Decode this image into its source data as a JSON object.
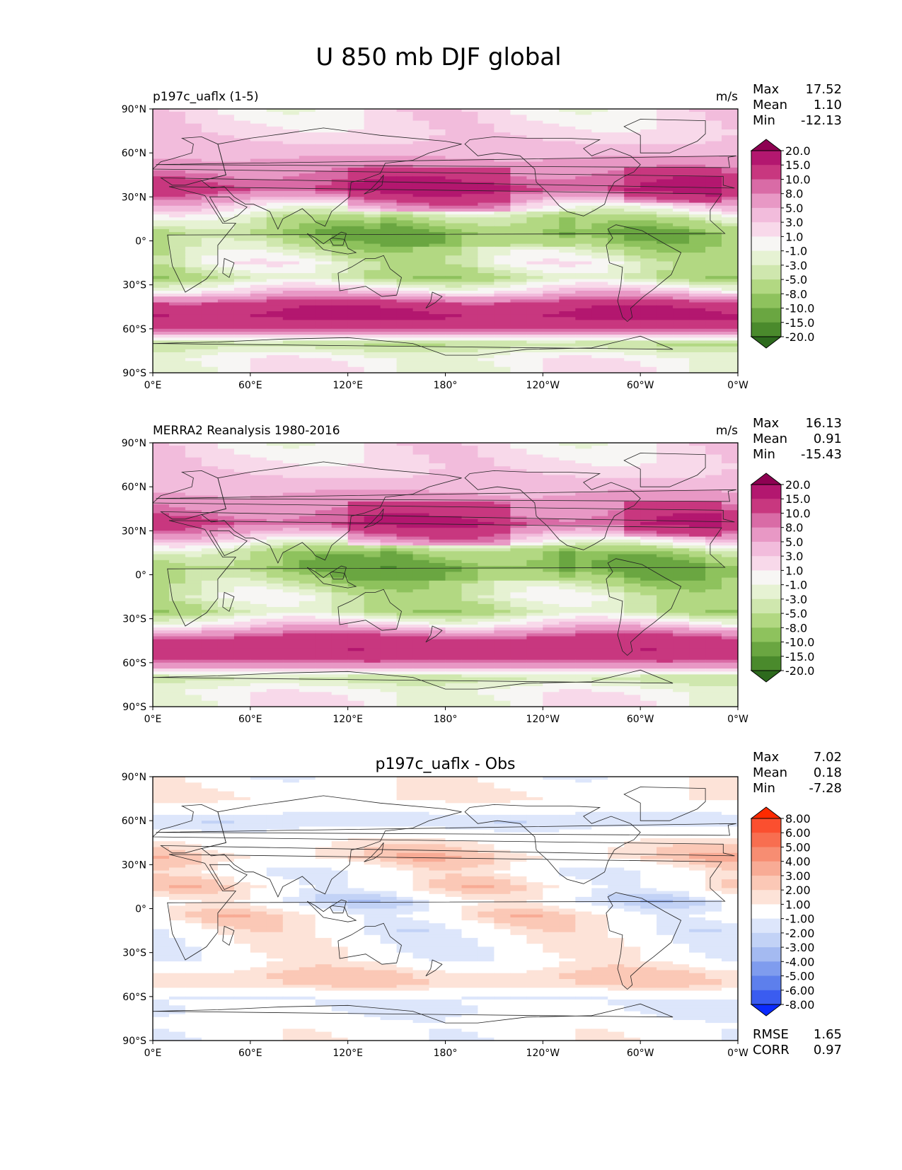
{
  "title": "U 850 mb DJF global",
  "x_ticks": [
    "0°E",
    "60°E",
    "120°E",
    "180°",
    "120°W",
    "60°W",
    "0°W"
  ],
  "y_ticks": [
    "90°N",
    "60°N",
    "30°N",
    "0°",
    "30°S",
    "60°S",
    "90°S"
  ],
  "panels": [
    {
      "name": "model",
      "left_title": "p197c_uaflx (1-5)",
      "center_title": "",
      "units": "m/s",
      "stats": [
        {
          "label": "Max",
          "value": "17.52"
        },
        {
          "label": "Mean",
          "value": "1.10"
        },
        {
          "label": "Min",
          "value": "-12.13"
        }
      ],
      "footer_stats": []
    },
    {
      "name": "obs",
      "left_title": "MERRA2 Reanalysis 1980-2016",
      "center_title": "",
      "units": "m/s",
      "stats": [
        {
          "label": "Max",
          "value": "16.13"
        },
        {
          "label": "Mean",
          "value": "0.91"
        },
        {
          "label": "Min",
          "value": "-15.43"
        }
      ],
      "footer_stats": []
    },
    {
      "name": "diff",
      "left_title": "",
      "center_title": "p197c_uaflx - Obs",
      "units": "",
      "stats": [
        {
          "label": "Max",
          "value": "7.02"
        },
        {
          "label": "Mean",
          "value": "0.18"
        },
        {
          "label": "Min",
          "value": "-7.28"
        }
      ],
      "footer_stats": [
        {
          "label": "RMSE",
          "value": "1.65"
        },
        {
          "label": "CORR",
          "value": "0.97"
        }
      ]
    }
  ],
  "colorbars": {
    "wind": {
      "labels": [
        "20.0",
        "15.0",
        "10.0",
        "8.0",
        "5.0",
        "3.0",
        "1.0",
        "-1.0",
        "-3.0",
        "-5.0",
        "-8.0",
        "-10.0",
        "-15.0",
        "-20.0"
      ],
      "colors": [
        "#8e0152",
        "#b3176f",
        "#c8377f",
        "#d96ba6",
        "#e898c5",
        "#f2bcdc",
        "#f8d9ea",
        "#f7f6f4",
        "#e6f2d3",
        "#cfe7ae",
        "#b2d882",
        "#8ec25d",
        "#6aa641",
        "#4a8a2c",
        "#2d6a1d"
      ]
    },
    "diff": {
      "labels": [
        "8.00",
        "6.00",
        "5.00",
        "4.00",
        "3.00",
        "2.00",
        "1.00",
        "-1.00",
        "-2.00",
        "-3.00",
        "-4.00",
        "-5.00",
        "-6.00",
        "-8.00"
      ],
      "colors": [
        "#ff2a00",
        "#fb4f2f",
        "#f86e50",
        "#f78d72",
        "#f8ab95",
        "#fbc8b6",
        "#fde3d8",
        "#ffffff",
        "#dde6fb",
        "#c2d2f6",
        "#a4baf1",
        "#7f9cee",
        "#5d7fec",
        "#3a5cf0",
        "#0a2aff"
      ]
    }
  },
  "chart_data": [
    {
      "type": "heatmap",
      "title": "p197c_uaflx (1-5)",
      "units": "m/s",
      "x_range": [
        0,
        360
      ],
      "y_range": [
        -90,
        90
      ],
      "x_ticks": [
        "0°E",
        "60°E",
        "120°E",
        "180°",
        "120°W",
        "60°W",
        "0°W"
      ],
      "y_ticks": [
        "90°N",
        "60°N",
        "30°N",
        "0°",
        "30°S",
        "60°S",
        "90°S"
      ],
      "colorbar_levels": [
        -20,
        -15,
        -10,
        -8,
        -5,
        -3,
        -1,
        1,
        3,
        5,
        8,
        10,
        15,
        20
      ],
      "stats": {
        "max": 17.52,
        "mean": 1.1,
        "min": -12.13
      },
      "zonal_profile": {
        "lat": [
          90,
          75,
          60,
          45,
          35,
          25,
          15,
          5,
          -5,
          -15,
          -25,
          -35,
          -45,
          -52,
          -60,
          -70,
          -80,
          -90
        ],
        "u": [
          1,
          2,
          4,
          9,
          12,
          3,
          -4,
          -8,
          -5,
          -2,
          -5,
          3,
          14,
          16,
          10,
          -5,
          0,
          0
        ]
      }
    },
    {
      "type": "heatmap",
      "title": "MERRA2 Reanalysis 1980-2016",
      "units": "m/s",
      "x_range": [
        0,
        360
      ],
      "y_range": [
        -90,
        90
      ],
      "x_ticks": [
        "0°E",
        "60°E",
        "120°E",
        "180°",
        "120°W",
        "60°W",
        "0°W"
      ],
      "y_ticks": [
        "90°N",
        "60°N",
        "30°N",
        "0°",
        "30°S",
        "60°S",
        "90°S"
      ],
      "colorbar_levels": [
        -20,
        -15,
        -10,
        -8,
        -5,
        -3,
        -1,
        1,
        3,
        5,
        8,
        10,
        15,
        20
      ],
      "stats": {
        "max": 16.13,
        "mean": 0.91,
        "min": -15.43
      },
      "zonal_profile": {
        "lat": [
          90,
          75,
          60,
          45,
          35,
          25,
          15,
          5,
          -5,
          -15,
          -25,
          -35,
          -45,
          -52,
          -60,
          -70,
          -80,
          -90
        ],
        "u": [
          1,
          2,
          4,
          8,
          11,
          3,
          -6,
          -9,
          -6,
          -3,
          -5,
          3,
          13,
          14,
          9,
          -4,
          0,
          0
        ]
      }
    },
    {
      "type": "heatmap",
      "title": "p197c_uaflx - Obs",
      "units": "",
      "x_range": [
        0,
        360
      ],
      "y_range": [
        -90,
        90
      ],
      "x_ticks": [
        "0°E",
        "60°E",
        "120°E",
        "180°",
        "120°W",
        "60°W",
        "0°W"
      ],
      "y_ticks": [
        "90°N",
        "60°N",
        "30°N",
        "0°",
        "30°S",
        "60°S",
        "90°S"
      ],
      "colorbar_levels": [
        -8,
        -6,
        -5,
        -4,
        -3,
        -2,
        -1,
        1,
        2,
        3,
        4,
        5,
        6,
        8
      ],
      "stats": {
        "max": 7.02,
        "mean": 0.18,
        "min": -7.28,
        "rmse": 1.65,
        "corr": 0.97
      },
      "zonal_profile": {
        "lat": [
          90,
          75,
          60,
          45,
          35,
          25,
          15,
          5,
          -5,
          -15,
          -25,
          -35,
          -45,
          -52,
          -60,
          -70,
          -80,
          -90
        ],
        "u": [
          0,
          1,
          -2,
          1,
          2,
          0,
          1,
          -1,
          1,
          0,
          0,
          0,
          2,
          2,
          -1,
          -1,
          0,
          0
        ]
      }
    }
  ]
}
